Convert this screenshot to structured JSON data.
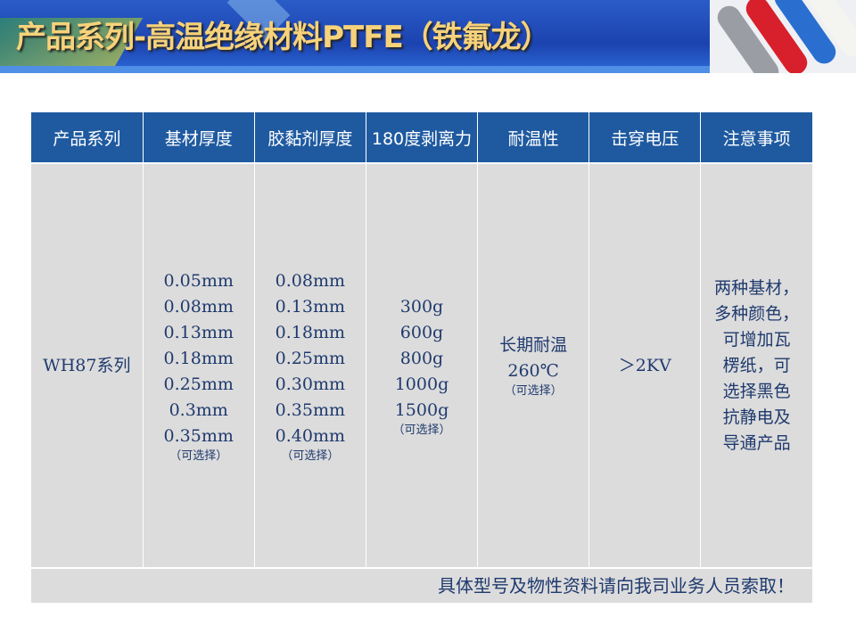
{
  "header": {
    "title": "产品系列-高温绝缘材料PTFE（铁氟龙）"
  },
  "table": {
    "columns": [
      "产品系列",
      "基材厚度",
      "胶黏剂厚度",
      "180度剥离力",
      "耐温性",
      "击穿电压",
      "注意事项"
    ],
    "row": {
      "series": "WH87系列",
      "base_thickness": [
        "0.05mm",
        "0.08mm",
        "0.13mm",
        "0.18mm",
        "0.25mm",
        "0.3mm",
        "0.35mm"
      ],
      "base_note": "（可选择）",
      "adhesive_thickness": [
        "0.08mm",
        "0.13mm",
        "0.18mm",
        "0.25mm",
        "0.30mm",
        "0.35mm",
        "0.40mm"
      ],
      "adhesive_note": "（可选择）",
      "peel": [
        "300g",
        "600g",
        "800g",
        "1000g",
        "1500g"
      ],
      "peel_note": "（可选择）",
      "temp": [
        "长期耐温",
        "260℃"
      ],
      "temp_note": "（可选择）",
      "voltage": "＞2KV",
      "notes": [
        "两种基材，",
        "多种颜色，",
        "可增加瓦",
        "楞纸，可",
        "选择黑色",
        "抗静电及",
        "导通产品"
      ]
    },
    "footer": "具体型号及物性资料请向我司业务人员索取！"
  }
}
